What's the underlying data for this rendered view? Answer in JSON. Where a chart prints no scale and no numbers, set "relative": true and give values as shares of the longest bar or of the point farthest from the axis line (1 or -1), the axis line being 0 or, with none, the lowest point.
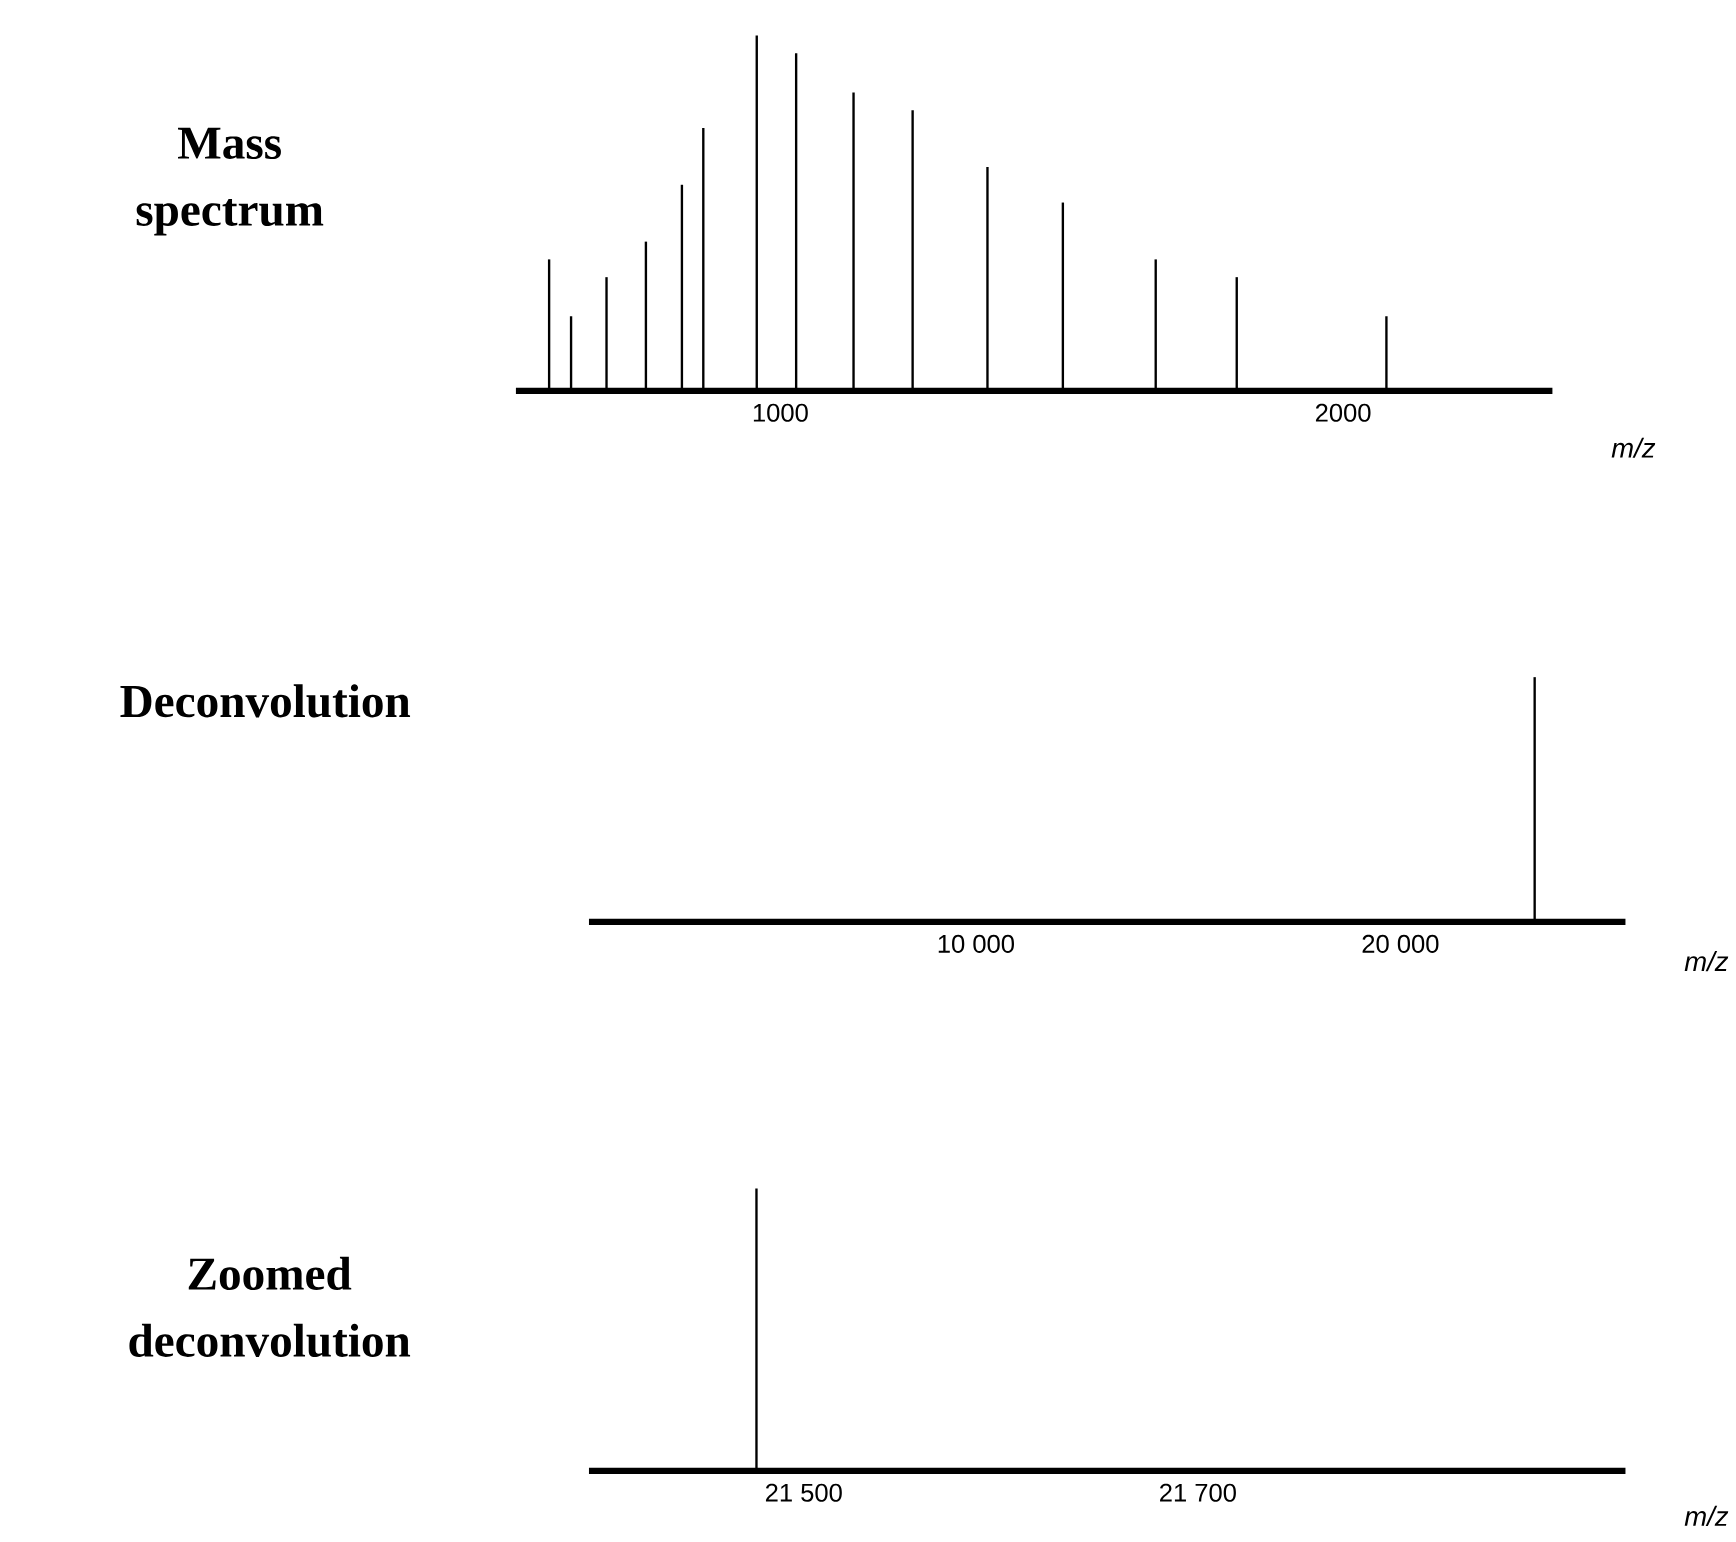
{
  "chart_data": [
    {
      "type": "bar",
      "title": "Mass spectrum",
      "xlabel": "m/z",
      "relative": true,
      "color": "#000000",
      "x": [
        589,
        628,
        691,
        761,
        825,
        863,
        958,
        1028,
        1130,
        1235,
        1368,
        1502,
        1667,
        1811,
        2077
      ],
      "values": [
        0.37,
        0.21,
        0.32,
        0.42,
        0.58,
        0.74,
        1.0,
        0.95,
        0.84,
        0.79,
        0.63,
        0.53,
        0.37,
        0.32,
        0.21
      ],
      "xlim": [
        530,
        2372
      ],
      "xticks": [
        {
          "value": 1000,
          "label": "1000"
        },
        {
          "value": 2000,
          "label": "2000"
        }
      ]
    },
    {
      "type": "bar",
      "title": "Deconvolution",
      "xlabel": "m/z",
      "relative": true,
      "color": "#000000",
      "x": [
        23163
      ],
      "values": [
        1.0
      ],
      "xlim": [
        884,
        25302
      ],
      "xticks": [
        {
          "value": 10000,
          "label": "10 000"
        },
        {
          "value": 20000,
          "label": "20 000"
        }
      ]
    },
    {
      "type": "bar",
      "title": "Zoomed deconvolution",
      "xlabel": "m/z",
      "relative": true,
      "color": "#000000",
      "x": [
        21476
      ],
      "values": [
        1.0
      ],
      "xlim": [
        21391,
        21917
      ],
      "xticks": [
        {
          "value": 21500,
          "label": "21 500"
        },
        {
          "value": 21700,
          "label": "21 700"
        }
      ]
    }
  ]
}
